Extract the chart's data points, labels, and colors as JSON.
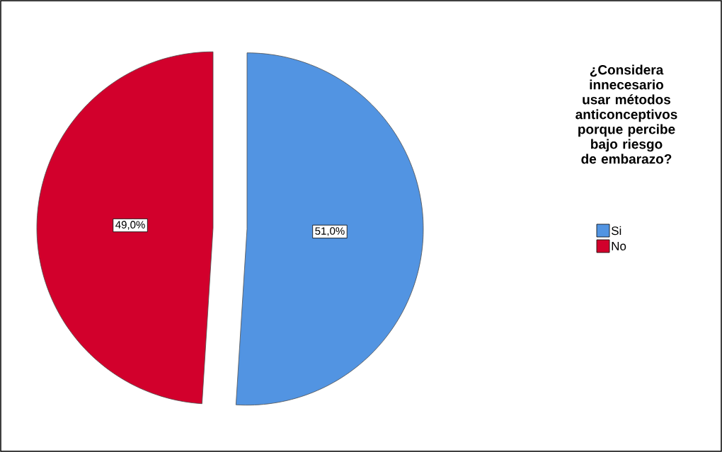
{
  "chart_data": {
    "type": "pie",
    "legend_title": "¿Considera innecesario usar métodos anticonceptivos porque percibe bajo riesgo de embarazo?",
    "categories": [
      "Si",
      "No"
    ],
    "values": [
      51.0,
      49.0
    ],
    "colors": [
      "#5294e2",
      "#d2002c"
    ],
    "value_labels": [
      "51,0%",
      "49,0%"
    ],
    "legend": "right"
  }
}
